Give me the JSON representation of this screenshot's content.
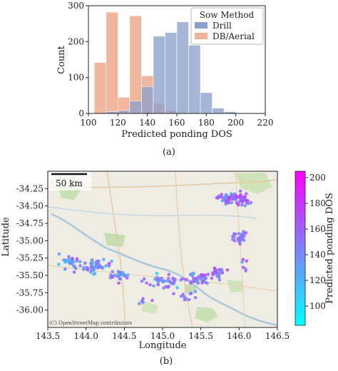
{
  "chart_data": [
    {
      "type": "bar",
      "caption": "(a)",
      "xlabel": "Predicted ponding DOS",
      "ylabel": "Count",
      "xlim": [
        100,
        220
      ],
      "ylim": [
        0,
        300
      ],
      "xticks": [
        "100",
        "120",
        "140",
        "160",
        "180",
        "200",
        "220"
      ],
      "yticks": [
        "0",
        "100",
        "200",
        "300"
      ],
      "bin_width": 8,
      "legend": {
        "title": "Sow Method",
        "position": "top-right"
      },
      "series": [
        {
          "name": "Drill",
          "color": "#8da0cb",
          "bin_starts": [
            112,
            120,
            128,
            136,
            144,
            152,
            160,
            168,
            176,
            184,
            192
          ],
          "values": [
            5,
            8,
            35,
            75,
            215,
            225,
            255,
            190,
            58,
            15,
            5
          ]
        },
        {
          "name": "DB/Aerial",
          "color": "#f0b196",
          "bin_starts": [
            104,
            112,
            120,
            128,
            136,
            144,
            152
          ],
          "values": [
            142,
            282,
            45,
            272,
            105,
            28,
            8
          ]
        }
      ]
    },
    {
      "type": "scatter",
      "caption": "(b)",
      "xlabel": "Longitude",
      "ylabel": "Latitude",
      "xlim": [
        143.5,
        146.5
      ],
      "ylim": [
        -36.25,
        -34.0
      ],
      "xticks": [
        "143.5",
        "144.0",
        "144.5",
        "145.0",
        "145.5",
        "146.0",
        "146.5"
      ],
      "yticks": [
        "-34.25",
        "-34.50",
        "-34.75",
        "-35.00",
        "-35.25",
        "-35.50",
        "-35.75",
        "-36.00"
      ],
      "scale_bar": "50 km",
      "attribution": "(C) OpenStreetMap contributors",
      "colorbar": {
        "label": "Predicted ponding DOS",
        "range": [
          85,
          205
        ],
        "ticks": [
          "100",
          "120",
          "140",
          "160",
          "180",
          "200"
        ],
        "color_low": "#00ffff",
        "color_high": "#ff00ff"
      },
      "clusters": [
        {
          "lon": 145.85,
          "lat": -34.38,
          "spread": [
            0.12,
            0.06
          ],
          "n": 45,
          "dos": [
            150,
            30
          ]
        },
        {
          "lon": 146.05,
          "lat": -34.42,
          "spread": [
            0.09,
            0.09
          ],
          "n": 30,
          "dos": [
            158,
            25
          ]
        },
        {
          "lon": 146.0,
          "lat": -34.95,
          "spread": [
            0.1,
            0.07
          ],
          "n": 28,
          "dos": [
            150,
            25
          ]
        },
        {
          "lon": 143.8,
          "lat": -35.3,
          "spread": [
            0.12,
            0.08
          ],
          "n": 28,
          "dos": [
            135,
            30
          ]
        },
        {
          "lon": 144.15,
          "lat": -35.38,
          "spread": [
            0.15,
            0.08
          ],
          "n": 45,
          "dos": [
            140,
            30
          ]
        },
        {
          "lon": 144.45,
          "lat": -35.5,
          "spread": [
            0.1,
            0.07
          ],
          "n": 25,
          "dos": [
            140,
            30
          ]
        },
        {
          "lon": 145.0,
          "lat": -35.58,
          "spread": [
            0.22,
            0.08
          ],
          "n": 40,
          "dos": [
            145,
            30
          ]
        },
        {
          "lon": 145.45,
          "lat": -35.55,
          "spread": [
            0.15,
            0.07
          ],
          "n": 40,
          "dos": [
            150,
            25
          ]
        },
        {
          "lon": 145.7,
          "lat": -35.45,
          "spread": [
            0.1,
            0.06
          ],
          "n": 25,
          "dos": [
            155,
            25
          ]
        },
        {
          "lon": 145.35,
          "lat": -35.8,
          "spread": [
            0.12,
            0.06
          ],
          "n": 12,
          "dos": [
            150,
            25
          ]
        },
        {
          "lon": 146.05,
          "lat": -35.3,
          "spread": [
            0.06,
            0.1
          ],
          "n": 6,
          "dos": [
            150,
            25
          ]
        },
        {
          "lon": 144.75,
          "lat": -35.85,
          "spread": [
            0.08,
            0.05
          ],
          "n": 6,
          "dos": [
            150,
            30
          ]
        }
      ]
    }
  ]
}
